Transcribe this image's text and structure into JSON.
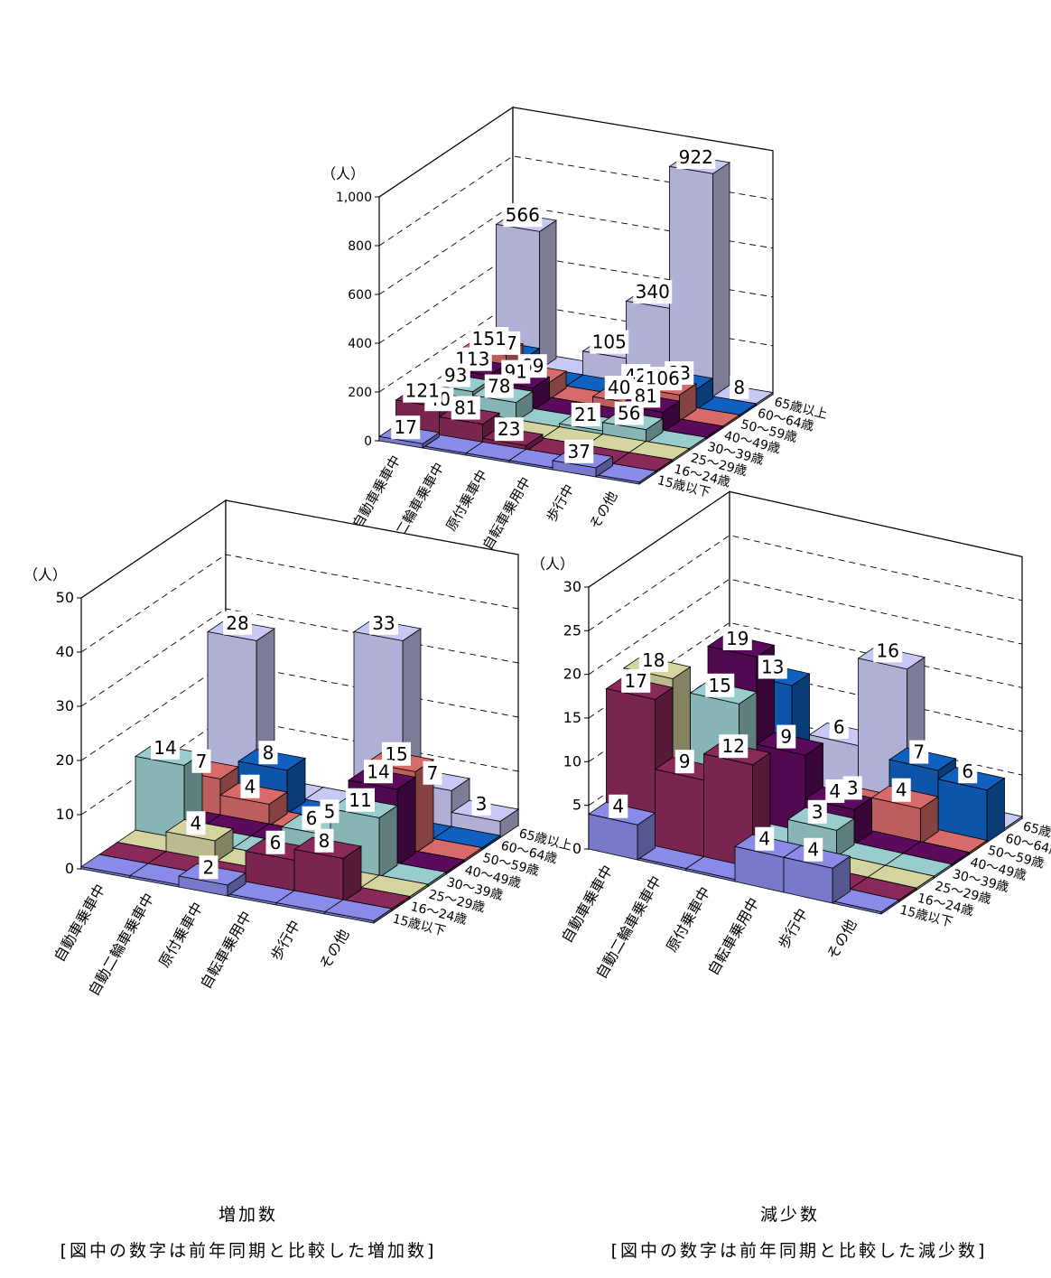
{
  "charts": [
    {
      "unit": "（人）",
      "yticks": [
        "0",
        "200",
        "400",
        "600",
        "800",
        "1,000"
      ],
      "caption_title": "",
      "caption_note": ""
    },
    {
      "unit": "（人）",
      "yticks": [
        "0",
        "10",
        "20",
        "30",
        "40",
        "50"
      ],
      "caption_title": "増加数",
      "caption_note": "[図中の数字は前年同期と比較した増加数]"
    },
    {
      "unit": "（人）",
      "yticks": [
        "0",
        "5",
        "10",
        "15",
        "20",
        "25",
        "30"
      ],
      "caption_title": "減少数",
      "caption_note": "[図中の数字は前年同期と比較した減少数]"
    }
  ],
  "colors": {
    "15歳以下": "#8a8ae8",
    "16～24歳": "#8a2a5a",
    "25～29歳": "#d4d4a0",
    "30～39歳": "#99cccc",
    "40～49歳": "#5c0a5c",
    "50～59歳": "#d86a6a",
    "60～64歳": "#1060c0",
    "65歳以上": "#c8c8f4"
  },
  "chart_data": [
    {
      "type": "bar",
      "categories": [
        "自動車乗車中",
        "自動二輪車乗車中",
        "原付乗車中",
        "自転車乗用中",
        "歩行中",
        "その他"
      ],
      "ylim": [
        0,
        1000
      ],
      "series": [
        {
          "name": "15歳以下",
          "values": [
            17,
            null,
            null,
            null,
            37,
            null
          ]
        },
        {
          "name": "16～24歳",
          "values": [
            121,
            81,
            23,
            null,
            null,
            null
          ]
        },
        {
          "name": "25～29歳",
          "values": [
            40,
            null,
            null,
            null,
            null,
            null
          ]
        },
        {
          "name": "30～39歳",
          "values": [
            93,
            78,
            null,
            21,
            56,
            null
          ]
        },
        {
          "name": "40～49歳",
          "values": [
            113,
            91,
            null,
            null,
            81,
            null
          ]
        },
        {
          "name": "50～59歳",
          "values": [
            151,
            69,
            null,
            40,
            106,
            null
          ]
        },
        {
          "name": "60～64歳",
          "values": [
            87,
            null,
            null,
            42,
            83,
            null
          ]
        },
        {
          "name": "65歳以上",
          "values": [
            566,
            null,
            105,
            340,
            922,
            8
          ]
        }
      ]
    },
    {
      "type": "bar",
      "categories": [
        "自動車乗車中",
        "自動二輪車乗車中",
        "原付乗車中",
        "自転車乗用中",
        "歩行中",
        "その他"
      ],
      "ylim": [
        0,
        50
      ],
      "series": [
        {
          "name": "15歳以下",
          "values": [
            null,
            null,
            2,
            null,
            null,
            null
          ]
        },
        {
          "name": "16～24歳",
          "values": [
            null,
            null,
            null,
            6,
            8,
            null
          ]
        },
        {
          "name": "25～29歳",
          "values": [
            null,
            4,
            null,
            null,
            null,
            null
          ]
        },
        {
          "name": "30～39歳",
          "values": [
            14,
            null,
            null,
            6,
            11,
            null
          ]
        },
        {
          "name": "40～49歳",
          "values": [
            null,
            null,
            null,
            5,
            14,
            null
          ]
        },
        {
          "name": "50～59歳",
          "values": [
            7,
            4,
            null,
            null,
            15,
            null
          ]
        },
        {
          "name": "60～64歳",
          "values": [
            null,
            8,
            null,
            null,
            null,
            null
          ]
        },
        {
          "name": "65歳以上",
          "values": [
            28,
            null,
            null,
            33,
            7,
            3
          ]
        }
      ]
    },
    {
      "type": "bar",
      "categories": [
        "自動車乗車中",
        "自動二輪車乗車中",
        "原付乗車中",
        "自転車乗用中",
        "歩行中",
        "その他"
      ],
      "ylim": [
        0,
        30
      ],
      "series": [
        {
          "name": "15歳以下",
          "values": [
            4,
            null,
            null,
            4,
            4,
            null
          ]
        },
        {
          "name": "16～24歳",
          "values": [
            17,
            9,
            12,
            null,
            null,
            null
          ]
        },
        {
          "name": "25～29歳",
          "values": [
            18,
            null,
            null,
            null,
            null,
            null
          ]
        },
        {
          "name": "30～39歳",
          "values": [
            null,
            15,
            null,
            3,
            null,
            null
          ]
        },
        {
          "name": "40～49歳",
          "values": [
            null,
            19,
            9,
            4,
            null,
            null
          ]
        },
        {
          "name": "50～59歳",
          "values": [
            null,
            null,
            null,
            3,
            4,
            null
          ]
        },
        {
          "name": "60～64歳",
          "values": [
            null,
            13,
            null,
            null,
            7,
            6
          ]
        },
        {
          "name": "65歳以上",
          "values": [
            null,
            null,
            6,
            16,
            null,
            null
          ]
        }
      ]
    }
  ]
}
